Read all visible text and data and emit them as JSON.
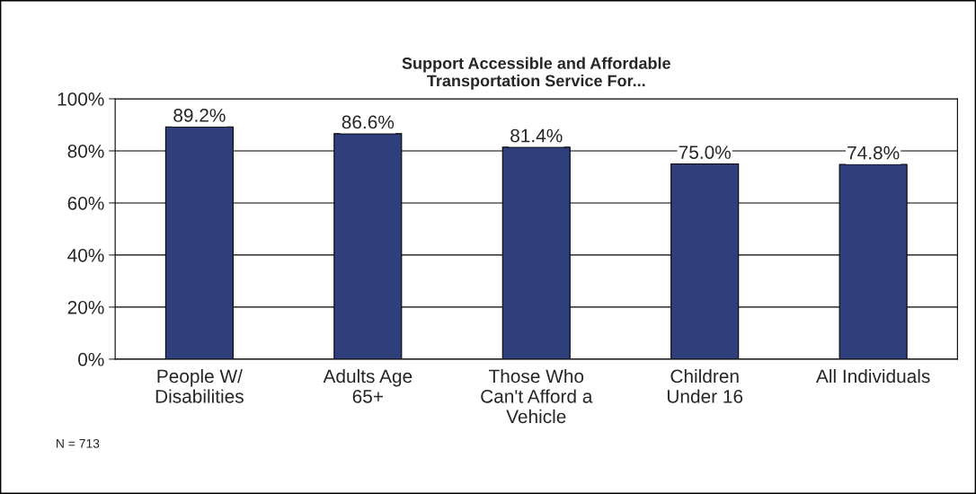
{
  "chart_data": {
    "type": "bar",
    "title": "Support Accessible and Affordable\nTransportation Service For...",
    "categories": [
      "People W/\nDisabilities",
      "Adults Age\n65+",
      "Those Who\nCan't Afford a\nVehicle",
      "Children\nUnder 16",
      "All Individuals"
    ],
    "values": [
      89.2,
      86.6,
      81.4,
      75.0,
      74.8
    ],
    "color": "#2f3f7c",
    "value_labels": [
      "89.2%",
      "86.6%",
      "81.4%",
      "75.0%",
      "74.8%"
    ],
    "ylim": [
      0,
      100
    ],
    "yticks": [
      {
        "value": 0,
        "label": "0%"
      },
      {
        "value": 20,
        "label": "20%"
      },
      {
        "value": 40,
        "label": "40%"
      },
      {
        "value": 60,
        "label": "60%"
      },
      {
        "value": 80,
        "label": "80%"
      },
      {
        "value": 100,
        "label": "100%"
      }
    ],
    "grid": "y",
    "annotations": [
      "N = 713"
    ]
  }
}
